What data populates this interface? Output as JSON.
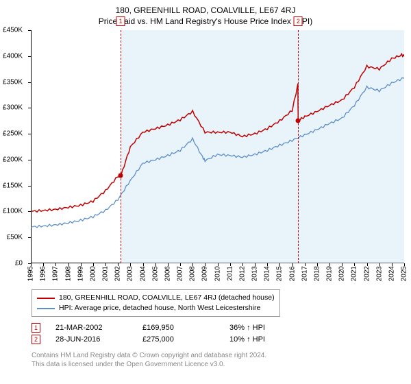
{
  "title_line1": "180, GREENHILL ROAD, COALVILLE, LE67 4RJ",
  "title_line2": "Price paid vs. HM Land Registry's House Price Index (HPI)",
  "chart": {
    "type": "line",
    "background": "#ffffff",
    "band_color": "#cfe4f5",
    "band_opacity": 0.45,
    "ylim": [
      0,
      450
    ],
    "ytick_step": 50,
    "ytick_prefix": "£",
    "ytick_suffix": "K",
    "xlim": [
      1995,
      2025
    ],
    "xticks": [
      1995,
      1996,
      1997,
      1998,
      1999,
      2000,
      2001,
      2002,
      2003,
      2004,
      2005,
      2006,
      2007,
      2008,
      2009,
      2010,
      2011,
      2012,
      2013,
      2014,
      2015,
      2016,
      2017,
      2018,
      2019,
      2020,
      2021,
      2022,
      2023,
      2024,
      2025
    ],
    "label_fontsize": 10,
    "axis_color": "#000000",
    "series": [
      {
        "name": "180, GREENHILL ROAD, COALVILLE, LE67 4RJ (detached house)",
        "color": "#c00000",
        "width": 1.5,
        "x": [
          1995,
          1996,
          1997,
          1998,
          1999,
          2000,
          2001,
          2002,
          2002.25,
          2003,
          2004,
          2005,
          2006,
          2007,
          2008,
          2009,
          2010,
          2011,
          2012,
          2013,
          2014,
          2015,
          2016,
          2016.46,
          2016.48,
          2017,
          2018,
          2019,
          2020,
          2021,
          2022,
          2023,
          2024,
          2024.8,
          2025
        ],
        "y": [
          100,
          102,
          104,
          108,
          112,
          120,
          140,
          168,
          170,
          225,
          253,
          260,
          267,
          277,
          293,
          253,
          253,
          253,
          245,
          250,
          260,
          275,
          295,
          345,
          275,
          283,
          293,
          305,
          315,
          340,
          380,
          375,
          395,
          402,
          400
        ]
      },
      {
        "name": "HPI: Average price, detached house, North West Leicestershire",
        "color": "#5b8fc9",
        "width": 1.3,
        "x": [
          1995,
          1996,
          1997,
          1998,
          1999,
          2000,
          2001,
          2002,
          2003,
          2004,
          2005,
          2006,
          2007,
          2008,
          2008.8,
          2009,
          2010,
          2011,
          2012,
          2013,
          2014,
          2015,
          2016,
          2017,
          2018,
          2019,
          2020,
          2021,
          2022,
          2023,
          2024,
          2025
        ],
        "y": [
          70,
          72,
          74,
          78,
          83,
          90,
          102,
          123,
          160,
          193,
          200,
          208,
          218,
          240,
          205,
          198,
          210,
          208,
          205,
          210,
          218,
          228,
          237,
          248,
          258,
          270,
          280,
          305,
          340,
          333,
          348,
          358
        ]
      }
    ],
    "sale_markers": [
      {
        "num": "1",
        "x": 2002.22,
        "y": 170,
        "band_to": 2016.49
      },
      {
        "num": "2",
        "x": 2016.49,
        "y": 275,
        "band_to": 2025
      }
    ],
    "dot_color": "#c00000",
    "marker_border": "#c00000"
  },
  "legend": {
    "items": [
      {
        "label": "180, GREENHILL ROAD, COALVILLE, LE67 4RJ (detached house)",
        "color": "#c00000"
      },
      {
        "label": "HPI: Average price, detached house, North West Leicestershire",
        "color": "#5b8fc9"
      }
    ]
  },
  "sales": [
    {
      "num": "1",
      "date": "21-MAR-2002",
      "price": "£169,950",
      "pct": "36% ↑ HPI"
    },
    {
      "num": "2",
      "date": "28-JUN-2016",
      "price": "£275,000",
      "pct": "10% ↑ HPI"
    }
  ],
  "footer": {
    "l1": "Contains HM Land Registry data © Crown copyright and database right 2024.",
    "l2": "This data is licensed under the Open Government Licence v3.0."
  }
}
